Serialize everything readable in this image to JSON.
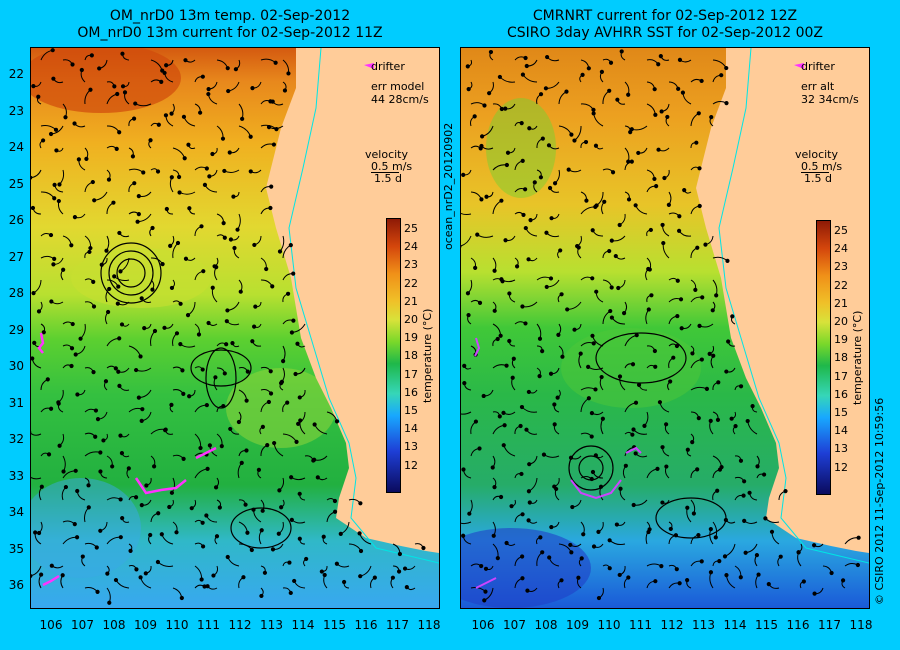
{
  "left_panel": {
    "title_line1": "OM_nrD0 13m temp. 02-Sep-2012",
    "title_line2": "OM_nrD0 13m current for 02-Sep-2012 11Z",
    "legend_drifter": "drifter",
    "err_label": "err model",
    "err_value": "44 28cm/s",
    "velocity_label": "velocity",
    "velocity_value": "0.5 m/s",
    "velocity_time": "1.5 d"
  },
  "right_panel": {
    "title_line1": "CMRNRT current for 02-Sep-2012 12Z",
    "title_line2": "CSIRO 3day AVHRR SST for 02-Sep-2012 00Z",
    "legend_drifter": "drifter",
    "err_label": "err alt",
    "err_value": "32 34cm/s",
    "velocity_label": "velocity",
    "velocity_value": "0.5 m/s",
    "velocity_time": "1.5 d"
  },
  "colorbar": {
    "label": "temperature (°C)",
    "ticks": [
      "25",
      "24",
      "23",
      "22",
      "21",
      "20",
      "19",
      "18",
      "17",
      "16",
      "15",
      "14",
      "13",
      "12"
    ]
  },
  "axes": {
    "y_ticks": [
      "22",
      "23",
      "24",
      "25",
      "26",
      "27",
      "28",
      "29",
      "30",
      "31",
      "32",
      "33",
      "34",
      "35",
      "36"
    ],
    "x_ticks": [
      "106",
      "107",
      "108",
      "109",
      "110",
      "111",
      "112",
      "113",
      "114",
      "115",
      "116",
      "117",
      "118"
    ]
  },
  "side_labels": {
    "left_vertical": "ocean_nrD2_20120902",
    "right_vertical": "© CSIRO 2012   11-Sep-2012 10:59:56"
  },
  "colors": {
    "background": "#00ccff",
    "land": "#ffcc99",
    "drifter": "#ff33ff"
  }
}
